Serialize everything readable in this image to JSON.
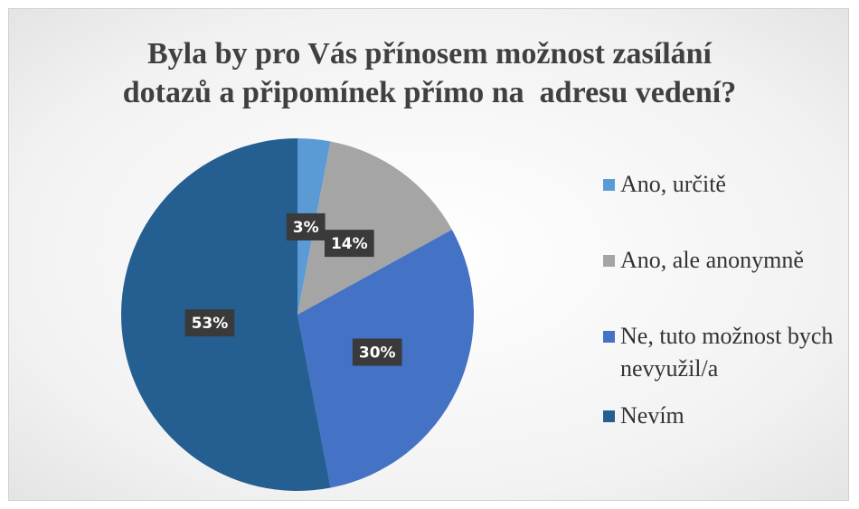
{
  "chart_data": {
    "type": "pie",
    "title": [
      "Byla by pro Vás přínosem možnost zasílání",
      "dotazů a připomínek přímo na  adresu vedení?"
    ],
    "categories": [
      "Ano, určitě",
      "Ano, ale anonymně",
      "Ne, tuto možnost bych nevyužil/a",
      "Nevím"
    ],
    "values": [
      3,
      14,
      30,
      53
    ],
    "value_labels": [
      "3%",
      "14%",
      "30%",
      "53%"
    ],
    "colors": [
      "#5b9bd5",
      "#a5a5a5",
      "#4472c4",
      "#255e91"
    ],
    "legend": "right"
  }
}
